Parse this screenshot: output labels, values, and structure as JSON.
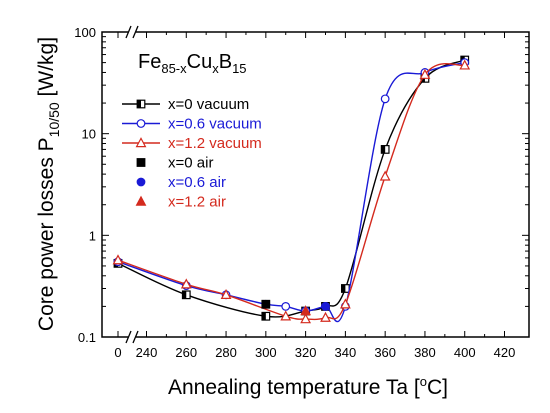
{
  "chart_data": {
    "type": "scatter",
    "panel_label": {
      "base": "Fe",
      "sub1": "85-x",
      "mid": "Cu",
      "sub2": "x",
      "tail": "B",
      "sub3": "15"
    },
    "ylabel": {
      "main": "Core power losses P",
      "sub": "10/50",
      "unit": " [W/kg]"
    },
    "xlabel": {
      "main": "Annealing temperature Ta [",
      "sup": "o",
      "unit": "C]"
    },
    "y_scale": "log",
    "ylim": [
      0.1,
      100
    ],
    "xlim": [
      230,
      420
    ],
    "x_break": "axis break between 0 and 240",
    "x_ticks": [
      "0",
      "240",
      "260",
      "280",
      "300",
      "320",
      "340",
      "360",
      "380",
      "400",
      "420"
    ],
    "x_tick_values": [
      0,
      240,
      260,
      280,
      300,
      320,
      340,
      360,
      380,
      400,
      420
    ],
    "y_ticks": [
      "0.1",
      "1",
      "10",
      "100"
    ],
    "y_tick_values": [
      0.1,
      1,
      10,
      100
    ],
    "legend_position": "upper-left",
    "series": [
      {
        "name": "x=0 vacuum",
        "color": "#000000",
        "marker": "half-square",
        "filled": false,
        "line": true,
        "points": [
          [
            0,
            0.53
          ],
          [
            260,
            0.26
          ],
          [
            300,
            0.16
          ],
          [
            320,
            0.18
          ],
          [
            330,
            0.2
          ],
          [
            340,
            0.3
          ],
          [
            360,
            7.0
          ],
          [
            380,
            35
          ],
          [
            400,
            53
          ]
        ]
      },
      {
        "name": "x=0.6 vacuum",
        "color": "#1a1ad6",
        "marker": "circle",
        "filled": false,
        "line": true,
        "points": [
          [
            0,
            0.55
          ],
          [
            260,
            0.32
          ],
          [
            280,
            0.26
          ],
          [
            300,
            0.21
          ],
          [
            310,
            0.2
          ],
          [
            320,
            0.18
          ],
          [
            330,
            0.2
          ],
          [
            340,
            0.2
          ],
          [
            360,
            22
          ],
          [
            380,
            40
          ],
          [
            400,
            50
          ]
        ]
      },
      {
        "name": "x=1.2 vacuum",
        "color": "#d42a1e",
        "marker": "triangle",
        "filled": false,
        "line": true,
        "points": [
          [
            0,
            0.57
          ],
          [
            260,
            0.33
          ],
          [
            280,
            0.26
          ],
          [
            310,
            0.16
          ],
          [
            320,
            0.15
          ],
          [
            330,
            0.155
          ],
          [
            340,
            0.21
          ],
          [
            360,
            3.8
          ],
          [
            380,
            38
          ],
          [
            400,
            47
          ]
        ]
      },
      {
        "name": "x=0 air",
        "color": "#000000",
        "marker": "square",
        "filled": true,
        "line": false,
        "points": [
          [
            300,
            0.21
          ]
        ]
      },
      {
        "name": "x=0.6 air",
        "color": "#1a1ad6",
        "marker": "circle",
        "filled": true,
        "line": false,
        "points": [
          [
            330,
            0.2
          ]
        ]
      },
      {
        "name": "x=1.2 air",
        "color": "#d42a1e",
        "marker": "triangle",
        "filled": true,
        "line": false,
        "points": [
          [
            320,
            0.18
          ]
        ]
      }
    ]
  }
}
